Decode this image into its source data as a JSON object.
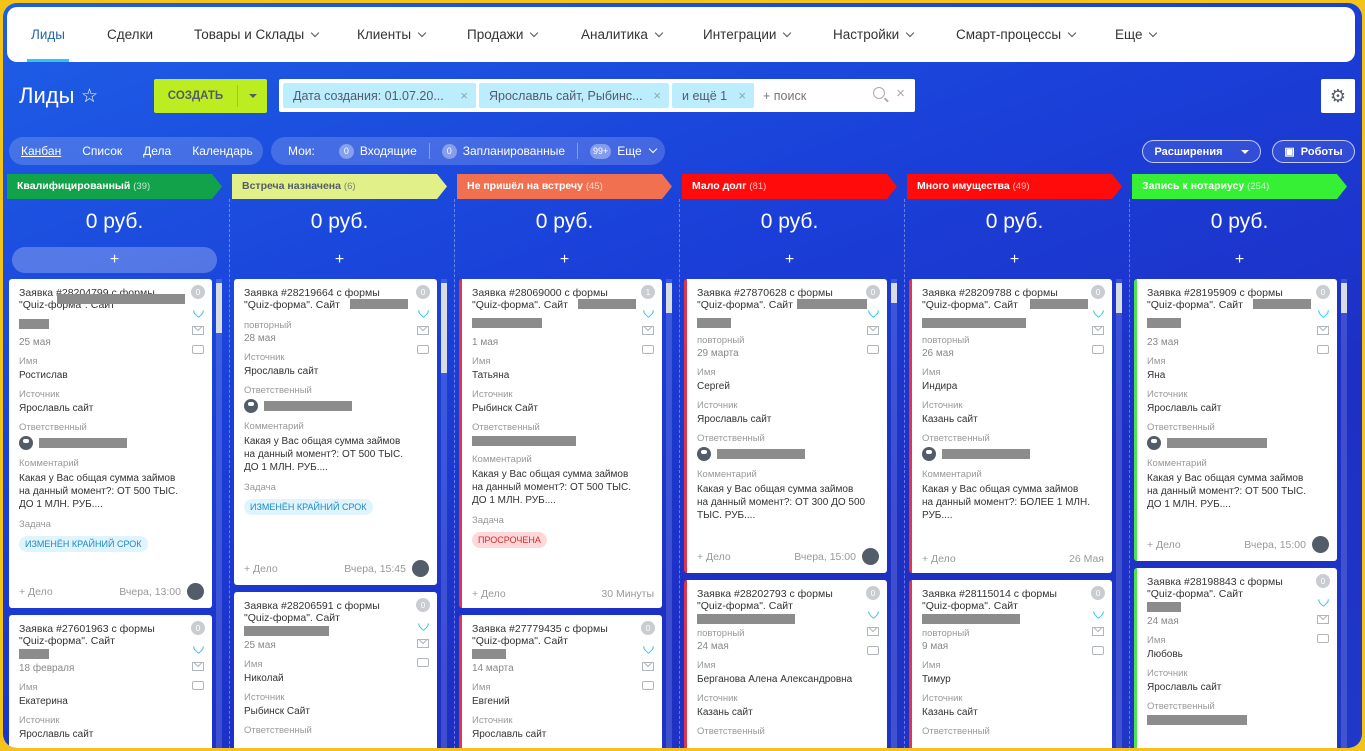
{
  "nav": {
    "items": [
      "Лиды",
      "Сделки",
      "Товары и Склады",
      "Клиенты",
      "Продажи",
      "Аналитика",
      "Интеграции",
      "Настройки",
      "Смарт-процессы",
      "Еще"
    ]
  },
  "header": {
    "title": "Лиды",
    "create_label": "СОЗДАТЬ",
    "filter_chips": [
      "Дата создания: 01.07.20...",
      "Ярославль сайт, Рыбинс...",
      "и ещё 1"
    ],
    "search_placeholder": "+ поиск"
  },
  "views": [
    "Канбан",
    "Список",
    "Дела",
    "Календарь"
  ],
  "counters": {
    "mine_label": "Мои:",
    "incoming_count": "0",
    "incoming_label": "Входящие",
    "planned_count": "0",
    "planned_label": "Запланированные",
    "more_count": "99+",
    "more_label": "Еще"
  },
  "extensions_label": "Расширения",
  "robots_label": "Роботы",
  "columns": [
    {
      "title": "Квалифицированный",
      "count": "(39)",
      "color": "#12a34a",
      "sum": "0 руб."
    },
    {
      "title": "Встреча назначена",
      "count": "(6)",
      "color": "#e2f08a",
      "sum": "0 руб."
    },
    {
      "title": "Не пришёл на встречу",
      "count": "(45)",
      "color": "#f07050",
      "sum": "0 руб."
    },
    {
      "title": "Мало долг",
      "count": "(81)",
      "color": "#ff0b0b",
      "sum": "0 руб."
    },
    {
      "title": "Много имущества",
      "count": "(49)",
      "color": "#ff0b0b",
      "sum": "0 руб."
    },
    {
      "title": "Запись к нотариусу",
      "count": "(254)",
      "color": "#35f035",
      "sum": "0 руб."
    }
  ],
  "add_symbol": "+",
  "labels": {
    "name": "Имя",
    "source": "Источник",
    "responsible": "Ответственный",
    "comment": "Комментарий",
    "task": "Задача",
    "repeat": "повторный",
    "add_deal": "+ Дело"
  },
  "cards": {
    "c1": {
      "title": "Заявка #28204799 с формы \"Quiz-форма\". Сайт",
      "date": "25 мая",
      "name": "Ростислав",
      "source": "Ярославль сайт",
      "comment": "Какая у Вас общая сумма займов на данный момент?: ОТ 500 ТЫС. ДО 1 МЛН. РУБ....",
      "tag": "ИЗМЕНЁН КРАЙНИЙ СРОК",
      "time": "Вчера, 13:00",
      "badge": "0"
    },
    "c2": {
      "title": "Заявка #27601963 с формы \"Quiz-форма\". Сайт",
      "date": "18 февраля",
      "name": "Екатерина",
      "source": "Ярославль сайт",
      "badge": "0"
    },
    "c3": {
      "title": "Заявка #28219664 с формы \"Quiz-форма\". Сайт",
      "date": "28 мая",
      "source": "Ярославль сайт",
      "comment": "Какая у Вас общая сумма займов на данный момент?: ОТ 500 ТЫС. ДО 1 МЛН. РУБ....",
      "tag": "ИЗМЕНЁН КРАЙНИЙ СРОК",
      "time": "Вчера, 15:45",
      "badge": "0"
    },
    "c4": {
      "title": "Заявка #28206591 с формы \"Quiz-форма\". Сайт",
      "date": "25 мая",
      "name": "Николай",
      "source": "Рыбинск Сайт",
      "badge": "0"
    },
    "c5": {
      "title": "Заявка #28069000 с формы \"Quiz-форма\". Сайт",
      "date": "1 мая",
      "name": "Татьяна",
      "source": "Рыбинск Сайт",
      "comment": "Какая у Вас общая сумма займов на данный момент?: ОТ 500 ТЫС. ДО 1 МЛН. РУБ....",
      "tag": "ПРОСРОЧЕНА",
      "time": "30 Минуты",
      "badge": "1"
    },
    "c6": {
      "title": "Заявка #27779435 с формы \"Quiz-форма\". Сайт",
      "date": "14 марта",
      "name": "Евгений",
      "source": "Ярославль сайт",
      "badge": "0"
    },
    "c7": {
      "title": "Заявка #27870628 с формы \"Quiz-форма\". Сайт",
      "date": "29 марта",
      "name": "Сергей",
      "source": "Ярославль сайт",
      "comment": "Какая у Вас общая сумма займов на данный момент?: ОТ 300 ДО 500 ТЫС. РУБ....",
      "time": "Вчера, 15:00",
      "badge": "0"
    },
    "c8": {
      "title": "Заявка #28202793 с формы \"Quiz-форма\". Сайт",
      "date": "24 мая",
      "name": "Берганова Алена Александровна",
      "source": "Казань сайт",
      "badge": "0"
    },
    "c9": {
      "title": "Заявка #28209788 с формы \"Quiz-форма\". Сайт",
      "date": "26 мая",
      "name": "Индира",
      "source": "Казань сайт",
      "comment": "Какая у Вас общая сумма займов на данный момент?: БОЛЕЕ 1 МЛН. РУБ....",
      "time": "26 Мая",
      "badge": "0"
    },
    "c10": {
      "title": "Заявка #28115014 с формы \"Quiz-форма\". Сайт",
      "date": "9 мая",
      "name": "Тимур",
      "source": "Казань сайт",
      "badge": "0"
    },
    "c11": {
      "title": "Заявка #28195909 с формы \"Quiz-форма\". Сайт",
      "date": "23 мая",
      "name": "Яна",
      "source": "Ярославль сайт",
      "comment": "Какая у Вас общая сумма займов на данный момент?: ОТ 500 ТЫС. ДО 1 МЛН. РУБ....",
      "time": "Вчера, 15:00",
      "badge": "0"
    },
    "c12": {
      "title": "Заявка #28198843 с формы \"Quiz-форма\". Сайт",
      "date": "24 мая",
      "name": "Любовь",
      "source": "Ярославль сайт",
      "badge": "0"
    }
  }
}
